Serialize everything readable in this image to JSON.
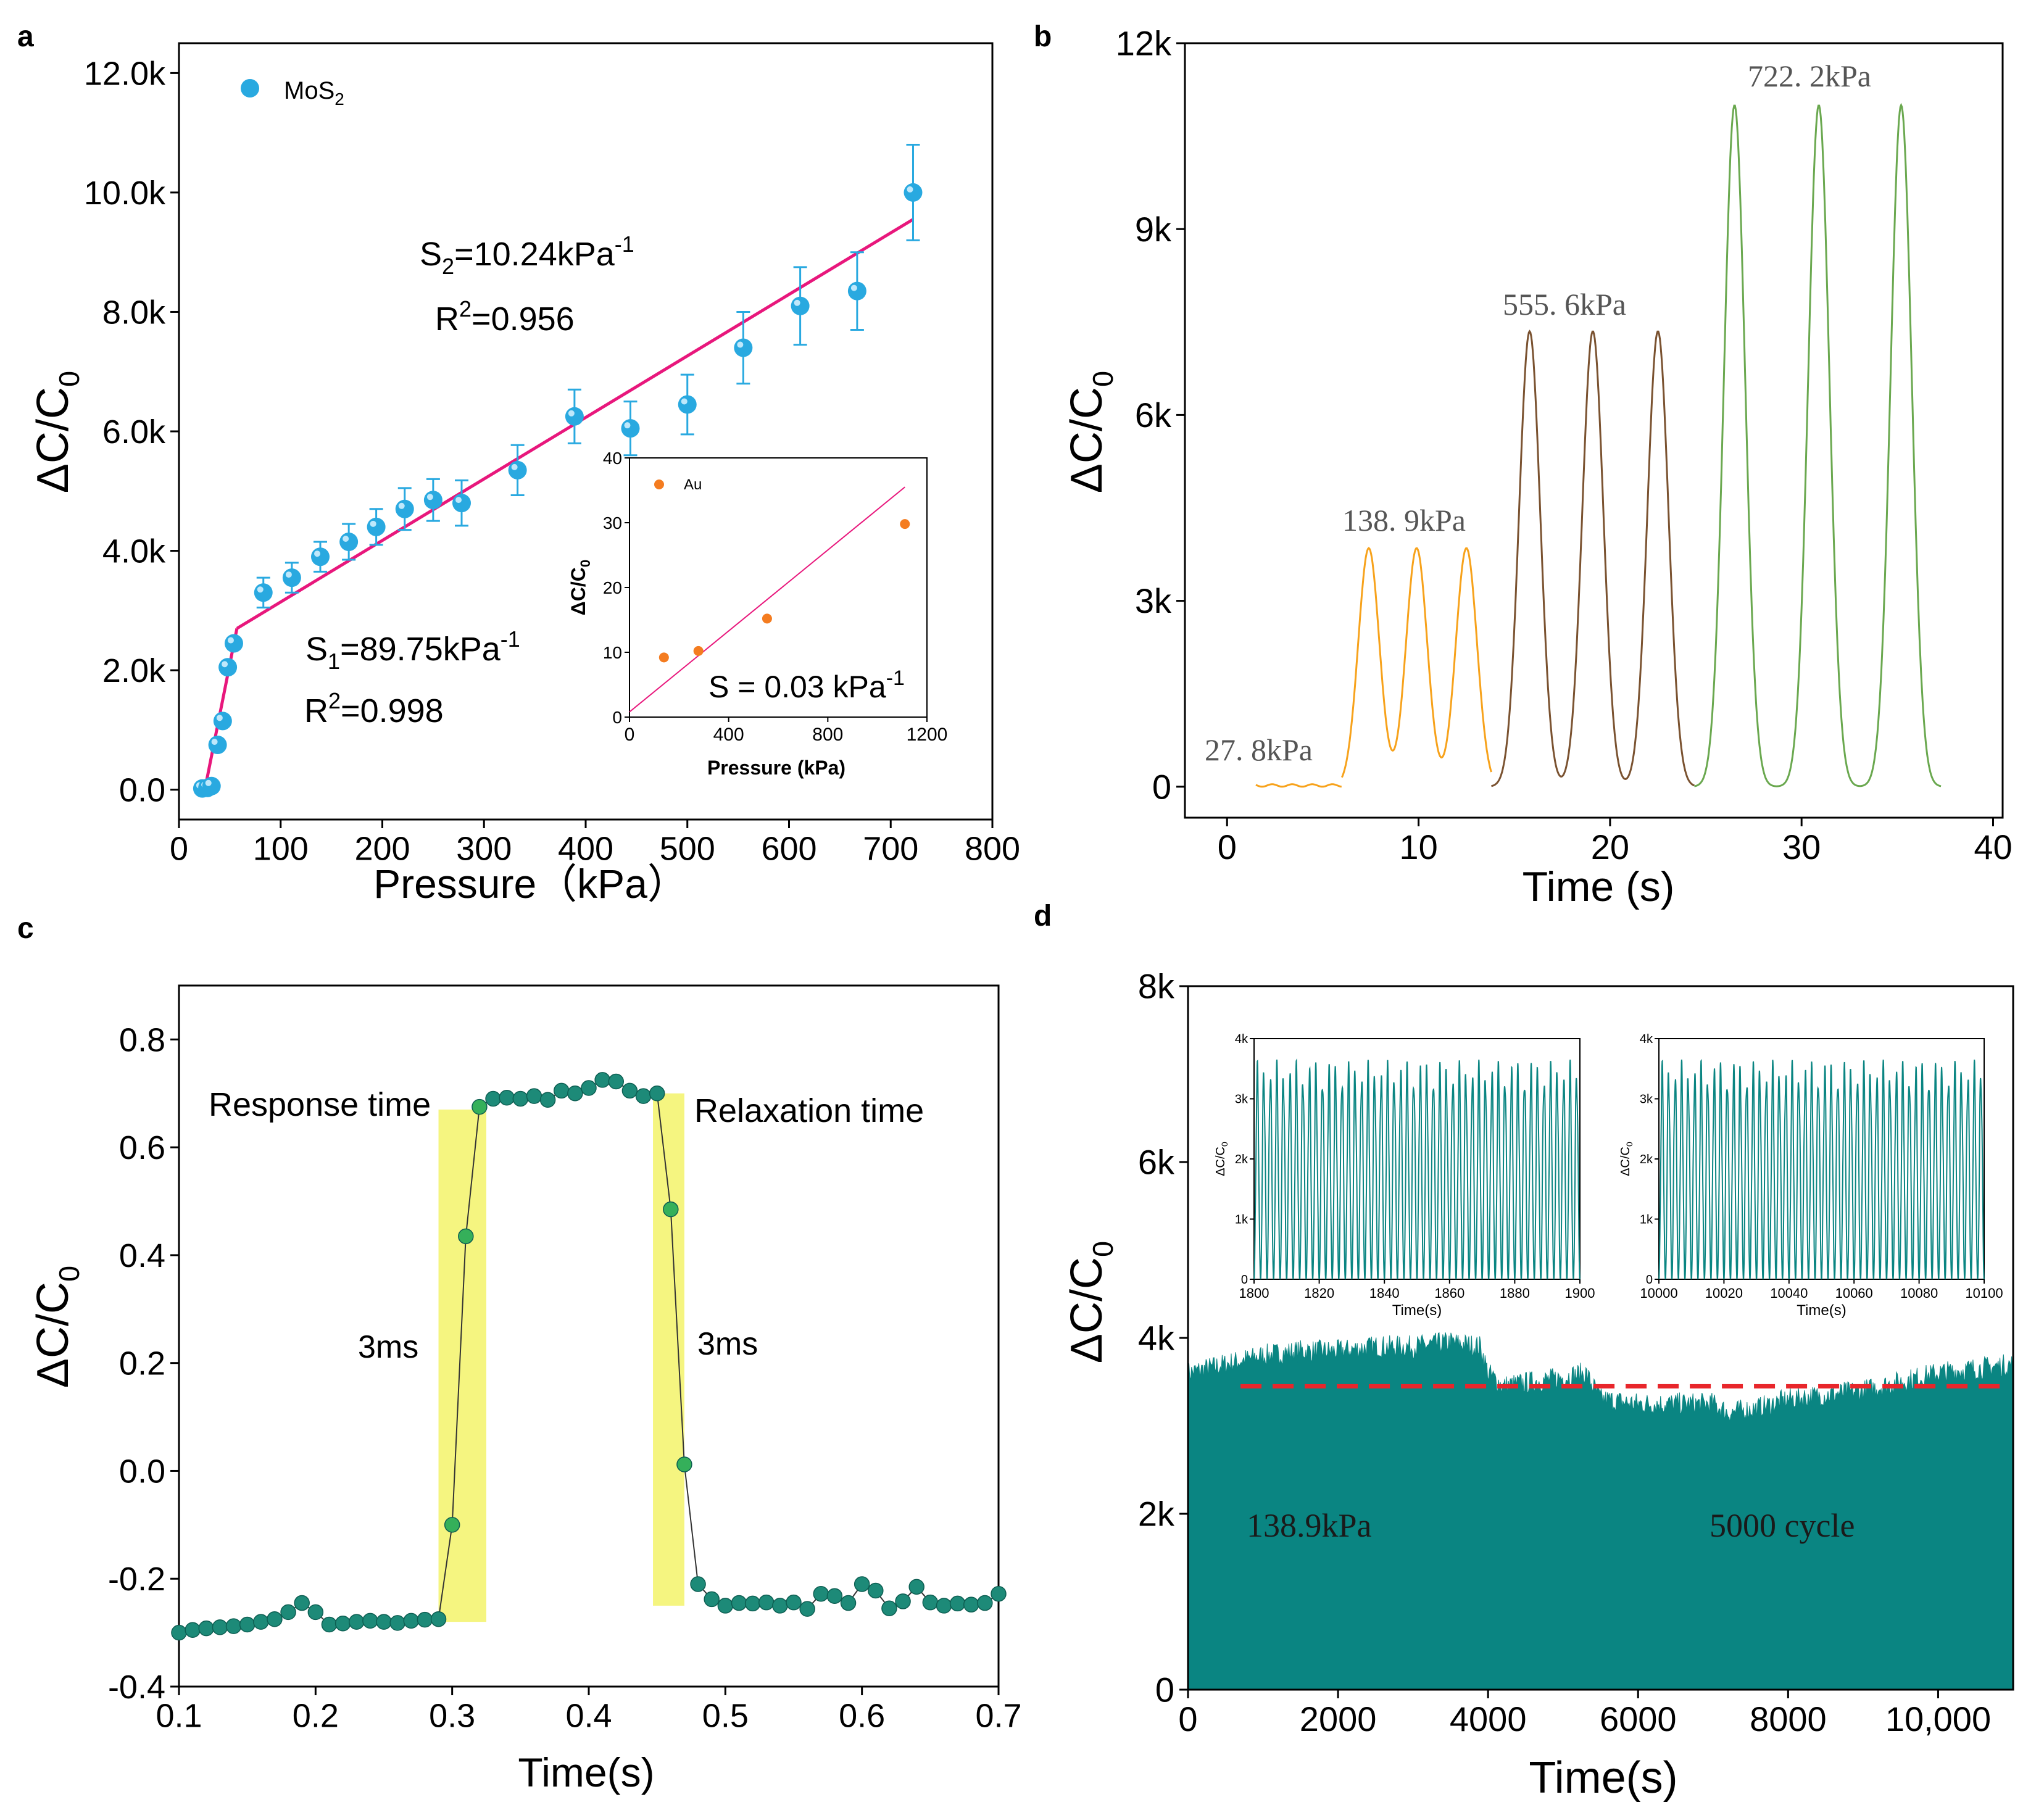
{
  "figure": {
    "panel_labels": [
      "a",
      "b",
      "c",
      "d"
    ]
  },
  "colors": {
    "mos2": "#29a9e0",
    "fit": "#e8177c",
    "au": "#f47c20",
    "b_yellow": "#f7a21b",
    "b_brown": "#7a5230",
    "b_green": "#6aa84f",
    "c_marker": "#1d8a78",
    "c_band": "#f3f36a",
    "d_fill": "#0a8582",
    "d_dash": "#e8262b"
  },
  "chart_data": [
    {
      "id": "a",
      "type": "scatter",
      "xlabel": "Pressure（kPa）",
      "ylabel": "ΔC/C0",
      "xlim": [
        0,
        800
      ],
      "ylim": [
        -0.5,
        12.5
      ],
      "xticks": [
        0,
        100,
        200,
        300,
        400,
        500,
        600,
        700,
        800
      ],
      "xtick_labels": [
        "0",
        "100",
        "200",
        "300",
        "400",
        "500",
        "600",
        "700",
        "800"
      ],
      "yticks": [
        0,
        2,
        4,
        6,
        8,
        10,
        12
      ],
      "ytick_labels": [
        "0.0",
        "2.0k",
        "4.0k",
        "6.0k",
        "8.0k",
        "10.0k",
        "12.0k"
      ],
      "legend": "MoS2",
      "series": [
        {
          "name": "MoS2",
          "points": [
            [
              23,
              0.02,
              0
            ],
            [
              28,
              0.03,
              0
            ],
            [
              32,
              0.06,
              0
            ],
            [
              38,
              0.75,
              0
            ],
            [
              43,
              1.15,
              0
            ],
            [
              48,
              2.05,
              0
            ],
            [
              54,
              2.45,
              0
            ],
            [
              83,
              3.3,
              0.25
            ],
            [
              111,
              3.55,
              0.25
            ],
            [
              139,
              3.9,
              0.25
            ],
            [
              167,
              4.15,
              0.3
            ],
            [
              194,
              4.4,
              0.3
            ],
            [
              222,
              4.7,
              0.35
            ],
            [
              250,
              4.85,
              0.35
            ],
            [
              278,
              4.8,
              0.38
            ],
            [
              333,
              5.35,
              0.42
            ],
            [
              389,
              6.25,
              0.45
            ],
            [
              444,
              6.05,
              0.45
            ],
            [
              500,
              6.45,
              0.5
            ],
            [
              555,
              7.4,
              0.6
            ],
            [
              611,
              8.1,
              0.65
            ],
            [
              667,
              8.35,
              0.65
            ],
            [
              722,
              10.0,
              0.8
            ]
          ]
        }
      ],
      "fits": [
        {
          "name": "fit1",
          "x": [
            26,
            57
          ],
          "y": [
            0.05,
            2.7
          ]
        },
        {
          "name": "fit2",
          "x": [
            57,
            722
          ],
          "y": [
            2.7,
            9.55
          ]
        }
      ],
      "annotations": {
        "s2_main": "S",
        "s2_sub": "2",
        "s2_value": "=10.24kPa",
        "s2_sup": "-1",
        "r2_top_main": "R",
        "r2_top_sup": "2",
        "r2_top_value": "=0.956",
        "s1_main": "S",
        "s1_sub": "1",
        "s1_value": "=89.75kPa",
        "s1_sup": "-1",
        "r2_bottom_main": "R",
        "r2_bottom_sup": "2",
        "r2_bottom_value": "=0.998"
      },
      "inset": {
        "xlim": [
          0,
          1200
        ],
        "ylim": [
          0,
          40
        ],
        "xticks": [
          0,
          400,
          800,
          1200
        ],
        "xtick_labels": [
          "0",
          "400",
          "800",
          "1200"
        ],
        "yticks": [
          0,
          10,
          20,
          30,
          40
        ],
        "ytick_labels": [
          "0",
          "10",
          "20",
          "30",
          "40"
        ],
        "xlabel": "Pressure (kPa)",
        "ylabel": "ΔC/C0",
        "legend": "Au",
        "points": [
          [
            139,
            9.2
          ],
          [
            278,
            10.2
          ],
          [
            555,
            15.2
          ],
          [
            1111,
            29.8
          ]
        ],
        "fit": {
          "x": [
            0,
            1111
          ],
          "y": [
            0.8,
            35.5
          ]
        },
        "annotation": "S = 0.03 kPa",
        "annotation_sup": "-1"
      }
    },
    {
      "id": "b",
      "type": "line",
      "xlabel": "Time (s)",
      "ylabel": "ΔC/C0",
      "xlim": [
        -2.2,
        40.5
      ],
      "ylim": [
        -500,
        12000
      ],
      "xticks": [
        0,
        10,
        20,
        30,
        40
      ],
      "xtick_labels": [
        "0",
        "10",
        "20",
        "30",
        "40"
      ],
      "yticks": [
        0,
        3000,
        6000,
        9000,
        12000
      ],
      "ytick_labels": [
        "0",
        "3k",
        "6k",
        "9k",
        "12k"
      ],
      "segments": [
        {
          "name": "27.8kPa",
          "label": "27. 8kPa",
          "peaks": [],
          "amplitude": 40,
          "t_start": 1.5,
          "t_end": 6.0
        },
        {
          "name": "138.9kPa",
          "label": "138. 9kPa",
          "peaks": [
            7.4,
            9.9,
            12.5
          ],
          "amplitude": 3850,
          "t_start": 6.0,
          "t_end": 13.8
        },
        {
          "name": "555.6kPa",
          "label": "555. 6kPa",
          "peaks": [
            15.8,
            19.1,
            22.5
          ],
          "amplitude": 7350,
          "t_start": 13.8,
          "t_end": 24.4
        },
        {
          "name": "722.2kPa",
          "label": "722. 2kPa",
          "peaks": [
            26.5,
            30.9,
            35.2
          ],
          "amplitude": 11000,
          "t_start": 24.4,
          "t_end": 37.3
        }
      ]
    },
    {
      "id": "c",
      "type": "line",
      "xlabel": "Time(s)",
      "ylabel": "ΔC/C0",
      "xlim": [
        0.1,
        0.7
      ],
      "ylim": [
        -0.4,
        0.9
      ],
      "xticks": [
        0.1,
        0.2,
        0.3,
        0.4,
        0.5,
        0.6,
        0.7
      ],
      "xtick_labels": [
        "0.1",
        "0.2",
        "0.3",
        "0.4",
        "0.5",
        "0.6",
        "0.7"
      ],
      "yticks": [
        -0.4,
        -0.2,
        0,
        0.2,
        0.4,
        0.6,
        0.8
      ],
      "ytick_labels": [
        "-0.4",
        "-0.2",
        "0.0",
        "0.2",
        "0.4",
        "0.6",
        "0.8"
      ],
      "x": [
        0.1,
        0.11,
        0.12,
        0.13,
        0.14,
        0.15,
        0.16,
        0.17,
        0.18,
        0.19,
        0.2,
        0.21,
        0.22,
        0.23,
        0.24,
        0.25,
        0.26,
        0.27,
        0.28,
        0.29,
        0.3,
        0.31,
        0.32,
        0.33,
        0.34,
        0.35,
        0.36,
        0.37,
        0.38,
        0.39,
        0.4,
        0.41,
        0.42,
        0.43,
        0.44,
        0.45,
        0.46,
        0.47,
        0.48,
        0.49,
        0.5,
        0.51,
        0.52,
        0.53,
        0.54,
        0.55,
        0.56,
        0.57,
        0.58,
        0.59,
        0.6,
        0.61,
        0.62,
        0.63,
        0.64,
        0.65,
        0.66,
        0.67,
        0.68,
        0.69,
        0.7
      ],
      "y": [
        -0.3,
        -0.295,
        -0.292,
        -0.29,
        -0.288,
        -0.285,
        -0.28,
        -0.275,
        -0.262,
        -0.245,
        -0.262,
        -0.285,
        -0.283,
        -0.28,
        -0.278,
        -0.28,
        -0.282,
        -0.278,
        -0.276,
        -0.275,
        -0.1,
        0.435,
        0.675,
        0.69,
        0.692,
        0.69,
        0.695,
        0.688,
        0.705,
        0.7,
        0.71,
        0.725,
        0.722,
        0.705,
        0.695,
        0.7,
        0.485,
        0.012,
        -0.21,
        -0.238,
        -0.25,
        -0.245,
        -0.246,
        -0.244,
        -0.25,
        -0.244,
        -0.256,
        -0.228,
        -0.232,
        -0.245,
        -0.21,
        -0.222,
        -0.255,
        -0.242,
        -0.215,
        -0.244,
        -0.25,
        -0.246,
        -0.248,
        -0.245,
        -0.228
      ],
      "bands": [
        {
          "x": [
            0.29,
            0.325
          ],
          "y": [
            -0.28,
            0.67
          ]
        },
        {
          "x": [
            0.447,
            0.47
          ],
          "y": [
            -0.25,
            0.7
          ]
        }
      ],
      "annotations": {
        "response": "Response time",
        "relaxation": "Relaxation time",
        "resp_ms": "3ms",
        "relax_ms": "3ms"
      }
    },
    {
      "id": "d",
      "type": "area",
      "xlabel": "Time(s)",
      "ylabel": "ΔC/C0",
      "xlim": [
        0,
        11000
      ],
      "ylim": [
        0,
        8000
      ],
      "xticks": [
        0,
        2000,
        4000,
        6000,
        8000,
        10000
      ],
      "xtick_labels": [
        "0",
        "2000",
        "4000",
        "6000",
        "8000",
        "10,000"
      ],
      "yticks": [
        0,
        2000,
        4000,
        6000,
        8000
      ],
      "ytick_labels": [
        "0",
        "2k",
        "4k",
        "6k",
        "8k"
      ],
      "envelope": [
        [
          0,
          3600
        ],
        [
          500,
          3700
        ],
        [
          1000,
          3800
        ],
        [
          1500,
          3850
        ],
        [
          2000,
          3850
        ],
        [
          2500,
          3900
        ],
        [
          3000,
          3900
        ],
        [
          3500,
          3950
        ],
        [
          3900,
          3900
        ],
        [
          4000,
          3600
        ],
        [
          4200,
          3450
        ],
        [
          4600,
          3500
        ],
        [
          5000,
          3550
        ],
        [
          5300,
          3600
        ],
        [
          5500,
          3300
        ],
        [
          6000,
          3250
        ],
        [
          6500,
          3250
        ],
        [
          7000,
          3250
        ],
        [
          7200,
          3150
        ],
        [
          7600,
          3200
        ],
        [
          8000,
          3300
        ],
        [
          8500,
          3350
        ],
        [
          9000,
          3400
        ],
        [
          9500,
          3500
        ],
        [
          10000,
          3600
        ],
        [
          10500,
          3650
        ],
        [
          11000,
          3700
        ]
      ],
      "reference_level": 3450,
      "annotations": {
        "pressure": "138.9kPa",
        "cycles": "5000 cycle"
      },
      "insets": [
        {
          "xlim": [
            1800,
            1900
          ],
          "ylim": [
            0,
            4000
          ],
          "xticks": [
            1800,
            1820,
            1840,
            1860,
            1880,
            1900
          ],
          "xtick_labels": [
            "1800",
            "1820",
            "1840",
            "1860",
            "1880",
            "1900"
          ],
          "yticks": [
            0,
            1000,
            2000,
            3000,
            4000
          ],
          "ytick_labels": [
            "0",
            "1k",
            "2k",
            "3k",
            "4k"
          ],
          "xlabel": "Time(s)",
          "ylabel": "ΔC/C0",
          "cycles": 50,
          "amplitude": 3650
        },
        {
          "xlim": [
            10000,
            10100
          ],
          "ylim": [
            0,
            4000
          ],
          "xticks": [
            10000,
            10020,
            10040,
            10060,
            10080,
            10100
          ],
          "xtick_labels": [
            "10000",
            "10020",
            "10040",
            "10060",
            "10080",
            "10100"
          ],
          "yticks": [
            0,
            1000,
            2000,
            3000,
            4000
          ],
          "ytick_labels": [
            "0",
            "1k",
            "2k",
            "3k",
            "4k"
          ],
          "xlabel": "Time(s)",
          "ylabel": "ΔC/C0",
          "cycles": 50,
          "amplitude": 3650
        }
      ]
    }
  ]
}
